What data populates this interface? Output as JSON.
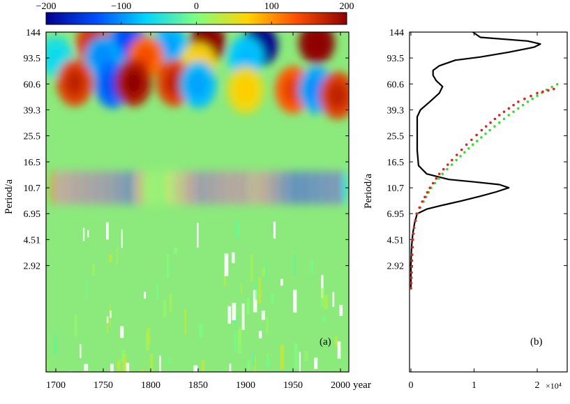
{
  "chart_data": [
    {
      "type": "heatmap",
      "panel_label": "(a)",
      "ylabel": "Period/a",
      "xlabel": "year",
      "x_ticks": [
        "1700",
        "1750",
        "1800",
        "1850",
        "1900",
        "1950",
        "2000"
      ],
      "y_ticks": [
        "144",
        "93.5",
        "60.6",
        "39.3",
        "25.5",
        "16.5",
        "10.7",
        "6.95",
        "4.51",
        "2.92"
      ],
      "xlim": [
        1700,
        2005
      ],
      "y_scale": "log2",
      "colorbar": {
        "ticks": [
          "−200",
          "−100",
          "0",
          "100",
          "200"
        ],
        "range": [
          -200,
          200
        ],
        "colors": [
          "#00008f",
          "#0050ff",
          "#00d4ff",
          "#7fff7f",
          "#ffd400",
          "#ff5000",
          "#8f0000"
        ]
      },
      "features": [
        {
          "x": 1740,
          "period": 120,
          "value": 150
        },
        {
          "x": 1775,
          "period": 125,
          "value": -120
        },
        {
          "x": 1820,
          "period": 115,
          "value": -80
        },
        {
          "x": 1860,
          "period": 120,
          "value": 200
        },
        {
          "x": 1915,
          "period": 115,
          "value": -200
        },
        {
          "x": 1975,
          "period": 120,
          "value": 200
        },
        {
          "x": 1700,
          "period": 95,
          "value": -50
        },
        {
          "x": 1750,
          "period": 95,
          "value": -90
        },
        {
          "x": 1795,
          "period": 95,
          "value": 120
        },
        {
          "x": 1850,
          "period": 85,
          "value": 60
        },
        {
          "x": 1900,
          "period": 95,
          "value": -70
        },
        {
          "x": 1720,
          "period": 62,
          "value": 150
        },
        {
          "x": 1760,
          "period": 60,
          "value": -120
        },
        {
          "x": 1782,
          "period": 62,
          "value": 180
        },
        {
          "x": 1825,
          "period": 62,
          "value": 150
        },
        {
          "x": 1850,
          "period": 60,
          "value": -80
        },
        {
          "x": 1900,
          "period": 55,
          "value": 60
        },
        {
          "x": 1950,
          "period": 55,
          "value": 130
        },
        {
          "x": 1975,
          "period": 55,
          "value": -90
        },
        {
          "x": 1997,
          "period": 50,
          "value": 150
        }
      ],
      "cycle_band": {
        "center_period": 10.7,
        "cycle_years": 11,
        "amplitudes": [
          [
            1700,
            120
          ],
          [
            1720,
            140
          ],
          [
            1740,
            150
          ],
          [
            1760,
            160
          ],
          [
            1780,
            190
          ],
          [
            1795,
            40
          ],
          [
            1810,
            30
          ],
          [
            1825,
            70
          ],
          [
            1850,
            160
          ],
          [
            1870,
            150
          ],
          [
            1880,
            140
          ],
          [
            1900,
            140
          ],
          [
            1910,
            110
          ],
          [
            1930,
            150
          ],
          [
            1950,
            200
          ],
          [
            1960,
            200
          ],
          [
            1980,
            190
          ],
          [
            2000,
            180
          ]
        ]
      }
    },
    {
      "type": "line",
      "panel_label": "(b)",
      "ylabel": "Period/a",
      "x_ticks": [
        "0",
        "1",
        "2"
      ],
      "x_multiplier": "×10⁴",
      "xlim": [
        0,
        2.45
      ],
      "y_ticks": [
        "144",
        "93.5",
        "60.6",
        "39.3",
        "25.5",
        "16.5",
        "10.7",
        "6.95",
        "4.51",
        "2.92"
      ],
      "y_scale": "log2",
      "series": [
        {
          "style": "solid-line",
          "color": "#000000",
          "points": [
            [
              0.0,
              2.0
            ],
            [
              0.0,
              3.0
            ],
            [
              0.01,
              4.0
            ],
            [
              0.03,
              5.0
            ],
            [
              0.06,
              6.0
            ],
            [
              0.1,
              6.95
            ],
            [
              0.25,
              7.5
            ],
            [
              0.5,
              8.0
            ],
            [
              0.8,
              8.6
            ],
            [
              1.1,
              9.3
            ],
            [
              1.35,
              10.0
            ],
            [
              1.55,
              10.7
            ],
            [
              1.4,
              11.3
            ],
            [
              1.0,
              11.8
            ],
            [
              0.6,
              12.3
            ],
            [
              0.25,
              13.5
            ],
            [
              0.12,
              15.5
            ],
            [
              0.1,
              20.0
            ],
            [
              0.1,
              25.5
            ],
            [
              0.1,
              30.0
            ],
            [
              0.1,
              35.0
            ],
            [
              0.15,
              39.3
            ],
            [
              0.3,
              45.0
            ],
            [
              0.45,
              52.0
            ],
            [
              0.5,
              58.0
            ],
            [
              0.4,
              64.0
            ],
            [
              0.35,
              70.0
            ],
            [
              0.35,
              76.0
            ],
            [
              0.45,
              82.0
            ],
            [
              0.7,
              90.0
            ],
            [
              1.1,
              95.0
            ],
            [
              1.55,
              103.0
            ],
            [
              1.95,
              112.0
            ],
            [
              2.05,
              118.0
            ],
            [
              1.85,
              124.0
            ],
            [
              1.1,
              132.0
            ],
            [
              0.98,
              144.0
            ]
          ]
        },
        {
          "style": "dotted",
          "color": "#33dd33",
          "points": [
            [
              0.0,
              2.0
            ],
            [
              0.01,
              2.6
            ],
            [
              0.02,
              3.5
            ],
            [
              0.03,
              4.5
            ],
            [
              0.05,
              5.5
            ],
            [
              0.1,
              6.95
            ],
            [
              0.2,
              8.5
            ],
            [
              0.32,
              10.7
            ],
            [
              0.5,
              13.5
            ],
            [
              0.72,
              17.0
            ],
            [
              0.98,
              22.0
            ],
            [
              1.25,
              28.0
            ],
            [
              1.55,
              36.0
            ],
            [
              1.85,
              45.0
            ],
            [
              2.15,
              55.0
            ],
            [
              2.4,
              63.0
            ]
          ]
        },
        {
          "style": "dotted",
          "color": "#dd2222",
          "points": [
            [
              0.0,
              2.0
            ],
            [
              0.01,
              2.6
            ],
            [
              0.02,
              3.5
            ],
            [
              0.03,
              4.5
            ],
            [
              0.05,
              5.5
            ],
            [
              0.09,
              6.95
            ],
            [
              0.18,
              8.5
            ],
            [
              0.3,
              10.7
            ],
            [
              0.45,
              13.5
            ],
            [
              0.65,
              17.0
            ],
            [
              0.88,
              22.0
            ],
            [
              1.12,
              28.0
            ],
            [
              1.4,
              36.0
            ],
            [
              1.7,
              45.0
            ],
            [
              2.0,
              52.0
            ],
            [
              2.35,
              57.0
            ]
          ]
        }
      ]
    }
  ]
}
